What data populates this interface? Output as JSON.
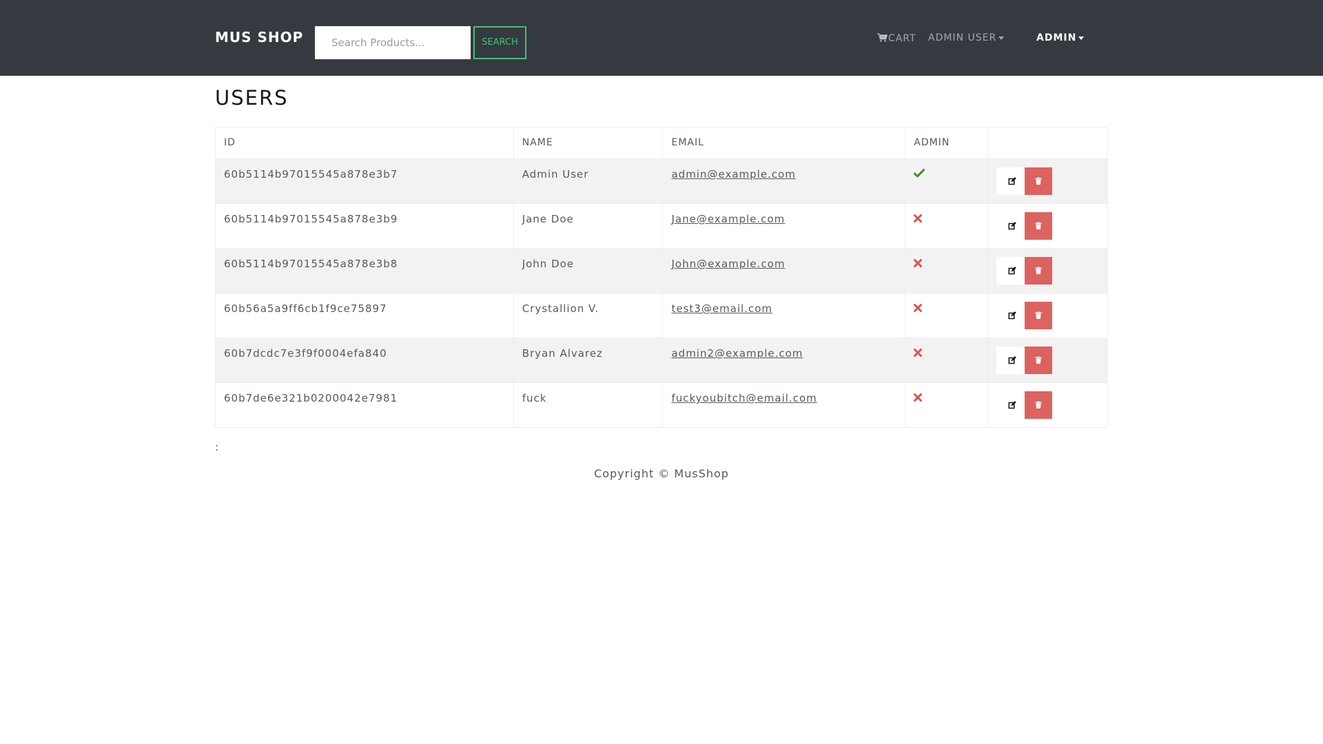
{
  "navbar": {
    "brand": "MUS SHOP",
    "search_placeholder": "Search Products...",
    "search_button": "SEARCH",
    "cart_label": "CART",
    "user_menu": "ADMIN USER",
    "admin_menu": "ADMIN"
  },
  "page": {
    "title": "USERS"
  },
  "table": {
    "headers": [
      "ID",
      "NAME",
      "EMAIL",
      "ADMIN",
      ""
    ],
    "rows": [
      {
        "id": "60b5114b97015545a878e3b7",
        "name": "Admin User",
        "email": "admin@example.com",
        "admin": true
      },
      {
        "id": "60b5114b97015545a878e3b9",
        "name": "Jane Doe",
        "email": "Jane@example.com",
        "admin": false
      },
      {
        "id": "60b5114b97015545a878e3b8",
        "name": "John Doe",
        "email": "John@example.com",
        "admin": false
      },
      {
        "id": "60b56a5a9ff6cb1f9ce75897",
        "name": "Crystallion V.",
        "email": "test3@email.com",
        "admin": false
      },
      {
        "id": "60b7dcdc7e3f9f0004efa840",
        "name": "Bryan Alvarez",
        "email": "admin2@example.com",
        "admin": false
      },
      {
        "id": "60b7de6e321b0200042e7981",
        "name": "fuck",
        "email": "fuckyoubitch@email.com",
        "admin": false
      }
    ]
  },
  "misc": {
    "stray_text": ":"
  },
  "footer": {
    "copyright": "Copyright © MusShop"
  },
  "icons": {
    "admin_true": "check-icon",
    "admin_false": "times-icon",
    "edit": "edit-icon",
    "delete": "trash-icon"
  },
  "colors": {
    "navbar": "#343a40",
    "accent_success": "#4bbf73",
    "check": "#3a8d2a",
    "danger": "#d9534f"
  }
}
